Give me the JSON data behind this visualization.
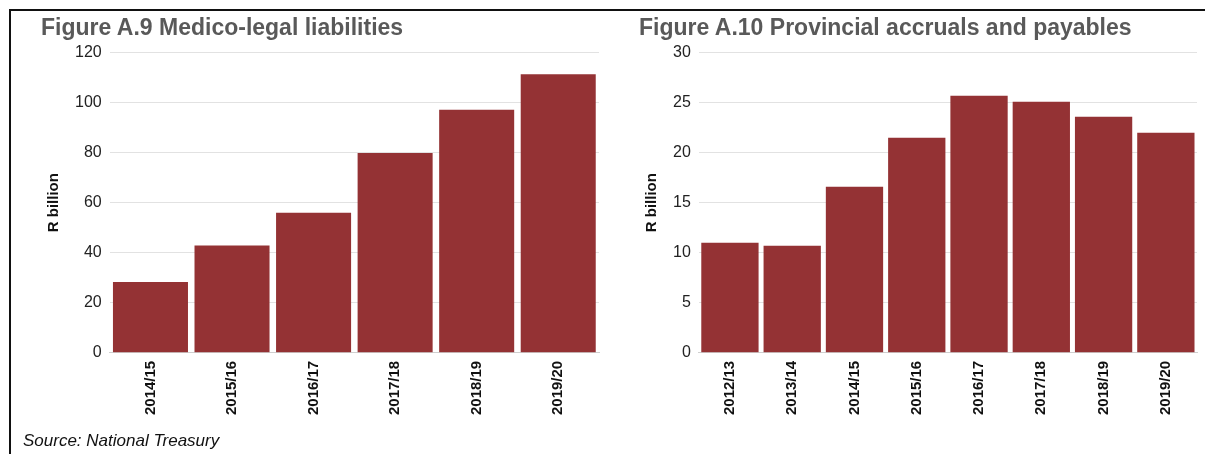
{
  "chart_data": [
    {
      "type": "bar",
      "title": "Figure A.9 Medico-legal liabilities",
      "ylabel": "R billion",
      "categories": [
        "2014/15",
        "2015/16",
        "2016/17",
        "2017/18",
        "2018/19",
        "2019/20"
      ],
      "values": [
        28.3,
        42.9,
        56.0,
        79.9,
        97.2,
        111.3
      ],
      "color": "#943234",
      "ylim": [
        0,
        120
      ],
      "yticks": [
        0,
        20,
        40,
        60,
        80,
        100,
        120
      ],
      "grid": "y",
      "legend": false,
      "annotations": [
        "Source: National Treasury"
      ]
    },
    {
      "type": "bar",
      "title": "Figure A.10 Provincial accruals and payables",
      "ylabel": "R billion",
      "categories": [
        "2012/13",
        "2013/14",
        "2014/15",
        "2015/16",
        "2016/17",
        "2017/18",
        "2018/19",
        "2019/20"
      ],
      "values": [
        11.0,
        10.7,
        16.6,
        21.5,
        25.7,
        25.1,
        23.6,
        22.0
      ],
      "color": "#943234",
      "ylim": [
        0,
        30
      ],
      "yticks": [
        0,
        5,
        10,
        15,
        20,
        25,
        30
      ],
      "grid": "y",
      "legend": false
    }
  ]
}
